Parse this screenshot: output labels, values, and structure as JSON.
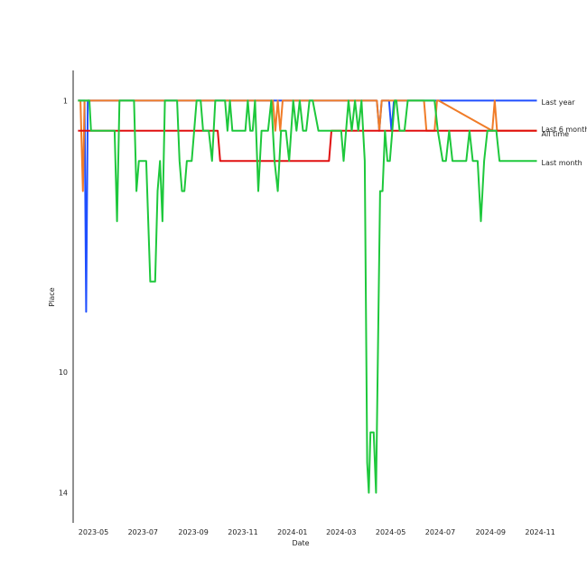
{
  "chart_data": {
    "type": "line",
    "title": "",
    "xlabel": "Date",
    "ylabel": "Place",
    "x_ticks": [
      "2023-05",
      "2023-07",
      "2023-09",
      "2023-11",
      "2024-01",
      "2024-03",
      "2024-05",
      "2024-07",
      "2024-09",
      "2024-11"
    ],
    "y_ticks": [
      1,
      10,
      14
    ],
    "xlim": [
      "2023-04-06",
      "2024-11-22"
    ],
    "ylim": [
      0,
      15
    ],
    "y_inverted": true,
    "grid": false,
    "legend": "labels at line ends (right)",
    "series": [
      {
        "name": "Last year",
        "color": "#1f4fff",
        "points": [
          [
            "2023-04-12",
            1
          ],
          [
            "2023-04-20",
            1
          ],
          [
            "2023-04-22",
            8
          ],
          [
            "2023-04-24",
            1
          ],
          [
            "2023-12-20",
            1
          ],
          [
            "2024-04-14",
            1
          ],
          [
            "2024-04-17",
            2
          ],
          [
            "2024-04-20",
            1
          ],
          [
            "2024-04-29",
            1
          ],
          [
            "2024-05-02",
            2
          ],
          [
            "2024-05-05",
            1
          ],
          [
            "2024-10-28",
            1
          ]
        ]
      },
      {
        "name": "Last 6 months",
        "color": "#f07c28",
        "points": [
          [
            "2023-04-12",
            1
          ],
          [
            "2023-04-15",
            1
          ],
          [
            "2023-04-18",
            4
          ],
          [
            "2023-04-20",
            1
          ],
          [
            "2023-12-08",
            1
          ],
          [
            "2023-12-11",
            2
          ],
          [
            "2023-12-14",
            1
          ],
          [
            "2023-12-17",
            2
          ],
          [
            "2023-12-20",
            1
          ],
          [
            "2024-04-14",
            1
          ],
          [
            "2024-04-17",
            2
          ],
          [
            "2024-04-20",
            1
          ],
          [
            "2024-06-11",
            1
          ],
          [
            "2024-06-14",
            2
          ],
          [
            "2024-06-24",
            2
          ],
          [
            "2024-06-27",
            1
          ],
          [
            "2024-06-29",
            1
          ],
          [
            "2024-09-03",
            2
          ],
          [
            "2024-09-06",
            1
          ],
          [
            "2024-09-09",
            2
          ],
          [
            "2024-10-28",
            2
          ]
        ]
      },
      {
        "name": "All time",
        "color": "#e01010",
        "points": [
          [
            "2023-04-12",
            2
          ],
          [
            "2023-10-01",
            2
          ],
          [
            "2023-10-04",
            3
          ],
          [
            "2024-02-15",
            3
          ],
          [
            "2024-02-18",
            2
          ],
          [
            "2024-10-28",
            2
          ]
        ]
      },
      {
        "name": "Last month",
        "color": "#1ec83c",
        "points": [
          [
            "2023-04-12",
            1
          ],
          [
            "2023-04-26",
            1
          ],
          [
            "2023-04-28",
            2
          ],
          [
            "2023-05-27",
            2
          ],
          [
            "2023-05-30",
            5
          ],
          [
            "2023-06-02",
            1
          ],
          [
            "2023-06-20",
            1
          ],
          [
            "2023-06-23",
            4
          ],
          [
            "2023-06-26",
            3
          ],
          [
            "2023-07-05",
            3
          ],
          [
            "2023-07-10",
            7
          ],
          [
            "2023-07-16",
            7
          ],
          [
            "2023-07-19",
            4
          ],
          [
            "2023-07-22",
            3
          ],
          [
            "2023-07-25",
            5
          ],
          [
            "2023-07-28",
            1
          ],
          [
            "2023-08-12",
            1
          ],
          [
            "2023-08-15",
            3
          ],
          [
            "2023-08-18",
            4
          ],
          [
            "2023-08-21",
            4
          ],
          [
            "2023-08-24",
            3
          ],
          [
            "2023-08-30",
            3
          ],
          [
            "2023-09-02",
            2
          ],
          [
            "2023-09-05",
            1
          ],
          [
            "2023-09-10",
            1
          ],
          [
            "2023-09-13",
            2
          ],
          [
            "2023-09-20",
            2
          ],
          [
            "2023-09-24",
            3
          ],
          [
            "2023-09-28",
            1
          ],
          [
            "2023-10-10",
            1
          ],
          [
            "2023-10-13",
            2
          ],
          [
            "2023-10-16",
            1
          ],
          [
            "2023-10-19",
            2
          ],
          [
            "2023-11-04",
            2
          ],
          [
            "2023-11-07",
            1
          ],
          [
            "2023-11-10",
            2
          ],
          [
            "2023-11-13",
            2
          ],
          [
            "2023-11-16",
            1
          ],
          [
            "2023-11-20",
            4
          ],
          [
            "2023-11-24",
            2
          ],
          [
            "2023-12-02",
            2
          ],
          [
            "2023-12-06",
            1
          ],
          [
            "2023-12-10",
            3
          ],
          [
            "2023-12-14",
            4
          ],
          [
            "2023-12-18",
            2
          ],
          [
            "2023-12-24",
            2
          ],
          [
            "2023-12-28",
            3
          ],
          [
            "2024-01-02",
            1
          ],
          [
            "2024-01-06",
            2
          ],
          [
            "2024-01-10",
            1
          ],
          [
            "2024-01-14",
            2
          ],
          [
            "2024-01-18",
            2
          ],
          [
            "2024-01-22",
            1
          ],
          [
            "2024-01-26",
            1
          ],
          [
            "2024-02-02",
            2
          ],
          [
            "2024-03-01",
            2
          ],
          [
            "2024-03-04",
            3
          ],
          [
            "2024-03-07",
            2
          ],
          [
            "2024-03-10",
            1
          ],
          [
            "2024-03-14",
            2
          ],
          [
            "2024-03-18",
            1
          ],
          [
            "2024-03-22",
            2
          ],
          [
            "2024-03-26",
            1
          ],
          [
            "2024-03-30",
            3
          ],
          [
            "2024-04-02",
            13
          ],
          [
            "2024-04-04",
            14
          ],
          [
            "2024-04-06",
            12
          ],
          [
            "2024-04-10",
            12
          ],
          [
            "2024-04-13",
            14
          ],
          [
            "2024-04-18",
            4
          ],
          [
            "2024-04-21",
            4
          ],
          [
            "2024-04-24",
            2
          ],
          [
            "2024-04-27",
            3
          ],
          [
            "2024-04-30",
            3
          ],
          [
            "2024-05-03",
            2
          ],
          [
            "2024-05-06",
            1
          ],
          [
            "2024-05-08",
            1
          ],
          [
            "2024-05-12",
            2
          ],
          [
            "2024-05-18",
            2
          ],
          [
            "2024-05-22",
            1
          ],
          [
            "2024-06-24",
            1
          ],
          [
            "2024-06-28",
            2
          ],
          [
            "2024-07-04",
            3
          ],
          [
            "2024-07-08",
            3
          ],
          [
            "2024-07-12",
            2
          ],
          [
            "2024-07-16",
            3
          ],
          [
            "2024-08-02",
            3
          ],
          [
            "2024-08-06",
            2
          ],
          [
            "2024-08-10",
            3
          ],
          [
            "2024-08-16",
            3
          ],
          [
            "2024-08-20",
            5
          ],
          [
            "2024-08-24",
            3
          ],
          [
            "2024-08-28",
            2
          ],
          [
            "2024-09-03",
            2
          ],
          [
            "2024-09-08",
            2
          ],
          [
            "2024-09-12",
            3
          ],
          [
            "2024-10-28",
            3
          ]
        ]
      }
    ],
    "end_labels": [
      {
        "text": "Last year",
        "series": "Last year",
        "y": 1.05
      },
      {
        "text": "Last 6 months",
        "series": "Last 6 months",
        "y": 1.95
      },
      {
        "text": "All time",
        "series": "All time",
        "y": 2.1
      },
      {
        "text": "Last month",
        "series": "Last month",
        "y": 3.05
      }
    ]
  }
}
